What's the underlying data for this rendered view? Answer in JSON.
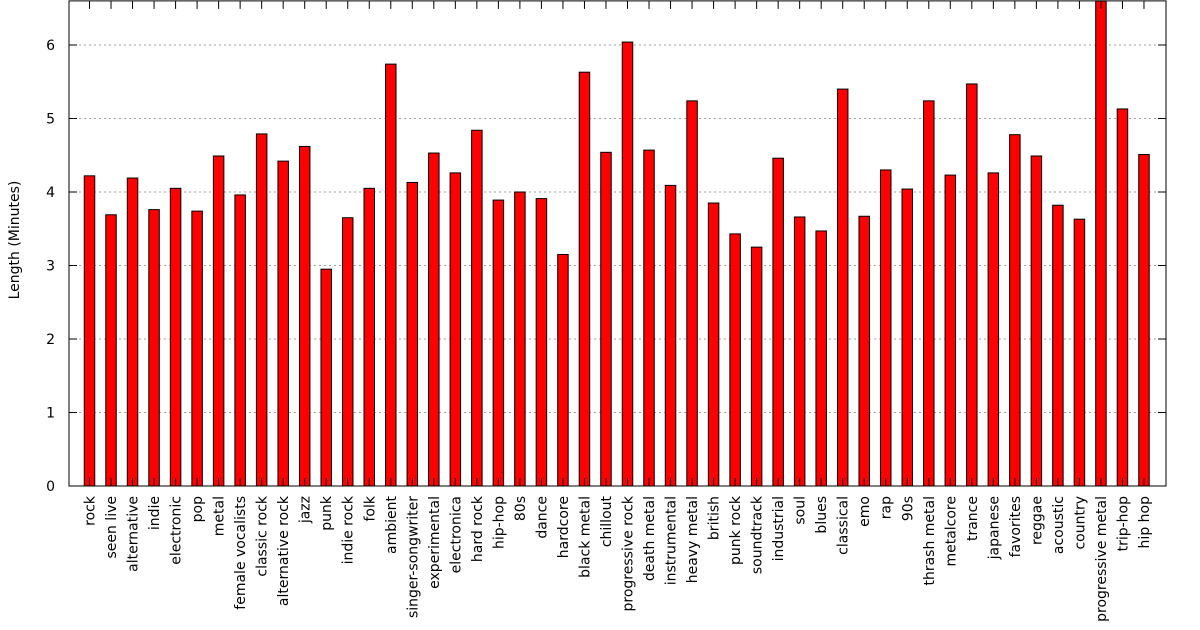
{
  "chart_data": {
    "type": "bar",
    "title": "",
    "xlabel": "",
    "ylabel": "Length (Minutes)",
    "ylim": [
      0,
      6.6
    ],
    "yticks": [
      0,
      1,
      2,
      3,
      4,
      5,
      6
    ],
    "grid": true,
    "bar_color": "#ff0000",
    "categories": [
      "rock",
      "seen live",
      "alternative",
      "indie",
      "electronic",
      "pop",
      "metal",
      "female vocalists",
      "classic rock",
      "alternative rock",
      "jazz",
      "punk",
      "indie rock",
      "folk",
      "ambient",
      "singer-songwriter",
      "experimental",
      "electronica",
      "hard rock",
      "hip-hop",
      "80s",
      "dance",
      "hardcore",
      "black metal",
      "chillout",
      "progressive rock",
      "death metal",
      "instrumental",
      "heavy metal",
      "british",
      "punk rock",
      "soundtrack",
      "industrial",
      "soul",
      "blues",
      "classical",
      "emo",
      "rap",
      "90s",
      "thrash metal",
      "metalcore",
      "trance",
      "japanese",
      "favorites",
      "reggae",
      "acoustic",
      "country",
      "progressive metal",
      "trip-hop",
      "hip hop"
    ],
    "values": [
      4.22,
      3.69,
      4.19,
      3.76,
      4.05,
      3.74,
      4.49,
      3.96,
      4.79,
      4.42,
      4.62,
      2.95,
      3.65,
      4.05,
      5.74,
      4.13,
      4.53,
      4.26,
      4.84,
      3.89,
      4.0,
      3.91,
      3.15,
      5.63,
      4.54,
      6.04,
      4.57,
      4.09,
      5.24,
      3.85,
      3.43,
      3.25,
      4.46,
      3.66,
      3.47,
      5.4,
      3.67,
      4.3,
      4.04,
      5.24,
      4.23,
      5.47,
      4.26,
      4.78,
      4.49,
      3.82,
      3.63,
      6.7,
      5.13,
      4.51
    ]
  }
}
